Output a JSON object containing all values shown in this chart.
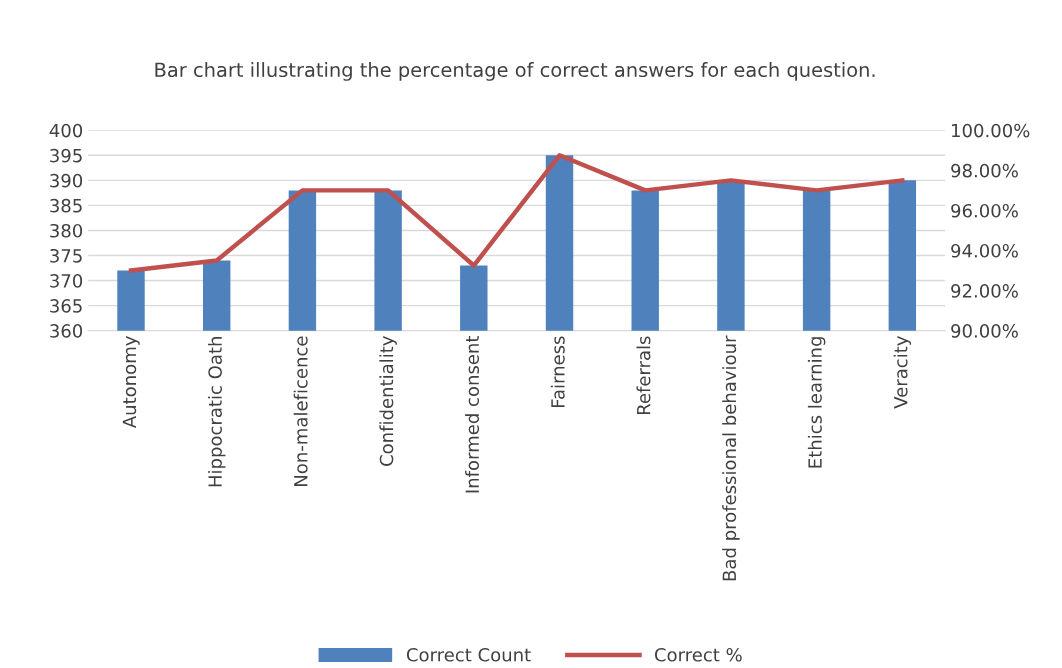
{
  "chart_data": {
    "type": "bar",
    "title": "Bar chart illustrating the percentage of correct answers for each question.",
    "categories": [
      "Autonomy",
      "Hippocratic Oath",
      "Non-maleficence",
      "Confidentiality",
      "Informed consent",
      "Fairness",
      "Referrals",
      "Bad professional behaviour",
      "Ethics learning",
      "Veracity"
    ],
    "series": [
      {
        "name": "Correct Count",
        "color": "#4f81bd",
        "values": [
          372,
          374,
          388,
          388,
          373,
          395,
          388,
          390,
          388,
          390
        ]
      },
      {
        "name": "Correct %",
        "type": "line",
        "axis": "y2",
        "color": "#c0504d",
        "values": [
          93.0,
          93.5,
          97.0,
          97.0,
          93.25,
          98.75,
          97.0,
          97.5,
          97.0,
          97.5
        ]
      }
    ],
    "ylim": [
      360,
      400
    ],
    "yticks": [
      360,
      365,
      370,
      375,
      380,
      385,
      390,
      395,
      400
    ],
    "y2lim": [
      90,
      100
    ],
    "y2ticks": [
      {
        "value": 90,
        "label": "90.00%"
      },
      {
        "value": 92,
        "label": "92.00%"
      },
      {
        "value": 94,
        "label": "94.00%"
      },
      {
        "value": 96,
        "label": "96.00%"
      },
      {
        "value": 98,
        "label": "98.00%"
      },
      {
        "value": 100,
        "label": "100.00%"
      }
    ],
    "grid": "y",
    "legend": "bottom",
    "marker": "none",
    "line_style": "solid"
  }
}
